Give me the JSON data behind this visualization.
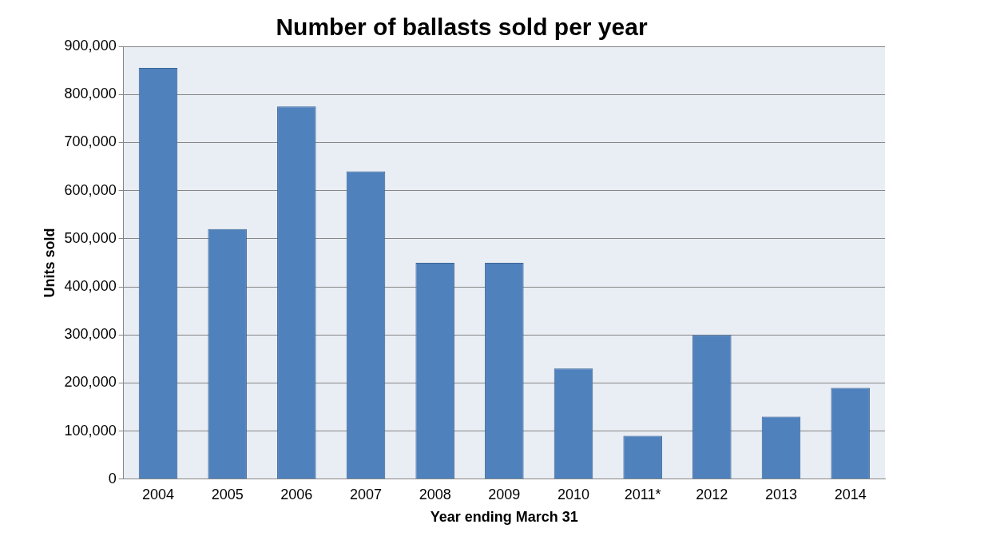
{
  "chart_data": {
    "type": "bar",
    "title": "Number of ballasts sold per year",
    "xlabel": "Year ending March 31",
    "ylabel": "Units sold",
    "categories": [
      "2004",
      "2005",
      "2006",
      "2007",
      "2008",
      "2009",
      "2010",
      "2011*",
      "2012",
      "2013",
      "2014"
    ],
    "values": [
      855000,
      520000,
      775000,
      640000,
      450000,
      450000,
      230000,
      90000,
      300000,
      130000,
      190000
    ],
    "color": "#4f81bd",
    "ylim": [
      0,
      900000
    ],
    "yticks": [
      0,
      {
        "value": 100000,
        "label": "100,000"
      },
      {
        "value": 200000,
        "label": "200,000"
      },
      {
        "value": 300000,
        "label": "300,000"
      },
      {
        "value": 400000,
        "label": "400,000"
      },
      {
        "value": 500000,
        "label": "500,000"
      },
      {
        "value": 600000,
        "label": "600,000"
      },
      {
        "value": 700000,
        "label": "700,000"
      },
      {
        "value": 800000,
        "label": "800,000"
      },
      {
        "value": 900000,
        "label": "900,000"
      }
    ],
    "grid": "y",
    "legend": false
  }
}
